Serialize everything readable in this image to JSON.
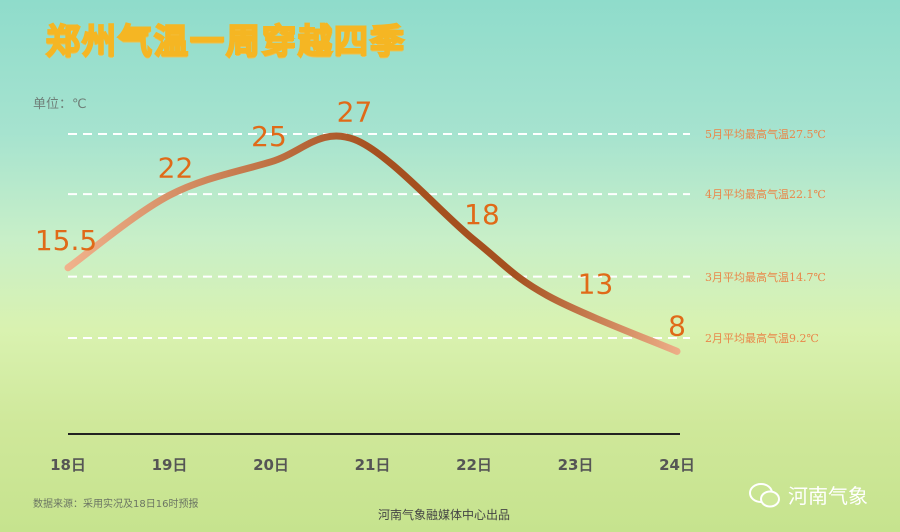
{
  "title": "郑州气温一周穿越四季",
  "unit_label": "单位：℃",
  "chart_data": {
    "type": "line",
    "title": "郑州气温一周穿越四季",
    "ylabel": "单位：℃",
    "categories": [
      "18日",
      "19日",
      "20日",
      "21日",
      "22日",
      "23日",
      "24日"
    ],
    "values": [
      15.5,
      22,
      25,
      27,
      18,
      13,
      8
    ],
    "value_labels": [
      "15.5",
      "22",
      "25",
      "27",
      "18",
      "13",
      "8"
    ],
    "ylim": [
      0,
      30
    ],
    "reference_lines": [
      {
        "value": 27.5,
        "label": "5月平均最高气温27.5℃"
      },
      {
        "value": 22.1,
        "label": "4月平均最高气温22.1℃"
      },
      {
        "value": 14.7,
        "label": "3月平均最高气温14.7℃"
      },
      {
        "value": 9.2,
        "label": "2月平均最高气温9.2℃"
      }
    ]
  },
  "footer": {
    "source": "数据来源：采用实况及18日16时预报",
    "credit": "河南气象融媒体中心出品",
    "brand": "河南气象"
  },
  "colors": {
    "line_light": "#f2b48e",
    "line_dark": "#a5501f",
    "value_label": "#e06a18",
    "ref_label": "#e9874a"
  }
}
